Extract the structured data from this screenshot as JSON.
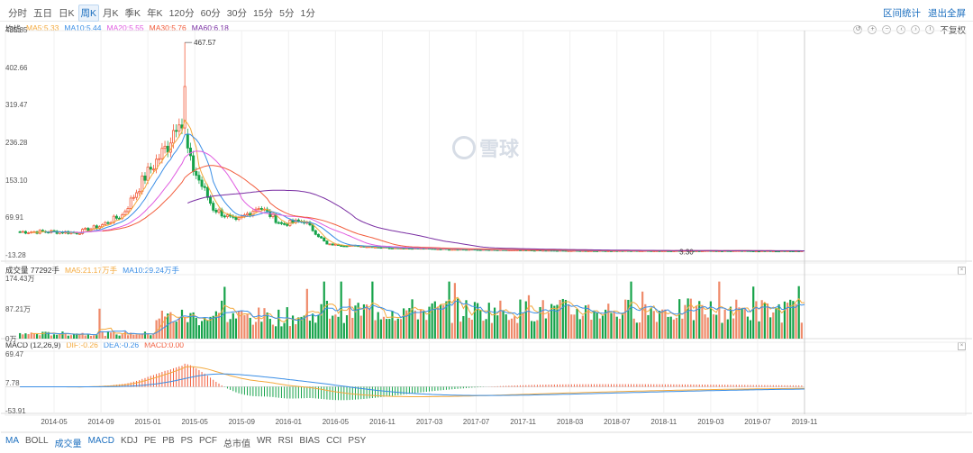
{
  "period_tabs": [
    "分时",
    "五日",
    "日K",
    "周K",
    "月K",
    "季K",
    "年K",
    "120分",
    "60分",
    "30分",
    "15分",
    "5分",
    "1分"
  ],
  "active_period": 3,
  "top_actions": [
    "区间统计",
    "退出全屏"
  ],
  "tools": {
    "adjust_label": "不复权"
  },
  "ma_legend": {
    "title": "均线",
    "items": [
      {
        "label": "MA5:5.33",
        "color": "#f4a93d"
      },
      {
        "label": "MA10:5.44",
        "color": "#3a8ee6"
      },
      {
        "label": "MA20:5.55",
        "color": "#e05ce0"
      },
      {
        "label": "MA30:5.76",
        "color": "#f25c3c"
      },
      {
        "label": "MA60:6.18",
        "color": "#7a2fa3"
      }
    ]
  },
  "vol_legend": {
    "title": "成交量 77292手",
    "items": [
      {
        "label": "MA5:21.17万手",
        "color": "#f4a93d"
      },
      {
        "label": "MA10:29.24万手",
        "color": "#3a8ee6"
      }
    ]
  },
  "macd_legend": {
    "title": "MACD (12,26,9)",
    "items": [
      {
        "label": "DIF:-0.26",
        "color": "#f4a93d"
      },
      {
        "label": "DEA:-0.26",
        "color": "#3a8ee6"
      },
      {
        "label": "MACD:0.00",
        "color": "#f25c3c"
      }
    ]
  },
  "bottom_tabs": [
    "MA",
    "BOLL",
    "成交量",
    "MACD",
    "KDJ",
    "PE",
    "PB",
    "PS",
    "PCF",
    "总市值",
    "WR",
    "RSI",
    "BIAS",
    "CCI",
    "PSY"
  ],
  "active_bottom_tabs": [
    0,
    2,
    3
  ],
  "watermark": "雪球",
  "colors": {
    "up": "#f25c3c",
    "down": "#16a34a",
    "upbar": "#ef8a6a"
  },
  "chart_data": [
    {
      "type": "candlestick",
      "title": "",
      "y_ticks": [
        "485.85",
        "402.66",
        "319.47",
        "236.28",
        "153.10",
        "69.91",
        "-13.28"
      ],
      "ylim": [
        -13.28,
        485.85
      ],
      "x_labels": [
        "2014-05",
        "2014-09",
        "2015-01",
        "2015-05",
        "2015-09",
        "2016-01",
        "2016-05",
        "2016-11",
        "2017-03",
        "2017-07",
        "2017-11",
        "2018-03",
        "2018-07",
        "2018-11",
        "2019-03",
        "2019-07",
        "2019-11"
      ],
      "annotations": [
        {
          "text": "467.57",
          "value": 467.57
        },
        {
          "text": "3.30",
          "value": 3.3
        }
      ],
      "close_series": [
        {
          "period": "2014-05",
          "close": 48
        },
        {
          "period": "2014-07",
          "close": 46
        },
        {
          "period": "2014-09",
          "close": 60
        },
        {
          "period": "2014-11",
          "close": 85
        },
        {
          "period": "2015-01",
          "close": 170
        },
        {
          "period": "2015-03",
          "close": 240
        },
        {
          "period": "2015-04",
          "close": 310
        },
        {
          "period": "2015-05",
          "close": 200
        },
        {
          "period": "2015-07",
          "close": 100
        },
        {
          "period": "2015-09",
          "close": 70
        },
        {
          "period": "2015-11",
          "close": 105
        },
        {
          "period": "2016-01",
          "close": 65
        },
        {
          "period": "2016-03",
          "close": 72
        },
        {
          "period": "2016-05",
          "close": 20
        },
        {
          "period": "2016-11",
          "close": 12
        },
        {
          "period": "2017-07",
          "close": 8
        },
        {
          "period": "2018-03",
          "close": 6
        },
        {
          "period": "2019-03",
          "close": 6
        },
        {
          "period": "2019-11",
          "close": 5.33
        }
      ],
      "ma_series": [
        "MA5",
        "MA10",
        "MA20",
        "MA30",
        "MA60"
      ]
    },
    {
      "type": "bar",
      "title": "成交量",
      "y_ticks": [
        "174.43万",
        "87.21万",
        "0万"
      ],
      "ylim": [
        0,
        174.43
      ],
      "unit": "万"
    },
    {
      "type": "bar",
      "title": "MACD (12,26,9)",
      "y_ticks": [
        "69.47",
        "7.78",
        "-53.91"
      ],
      "ylim": [
        -53.91,
        69.47
      ]
    }
  ]
}
